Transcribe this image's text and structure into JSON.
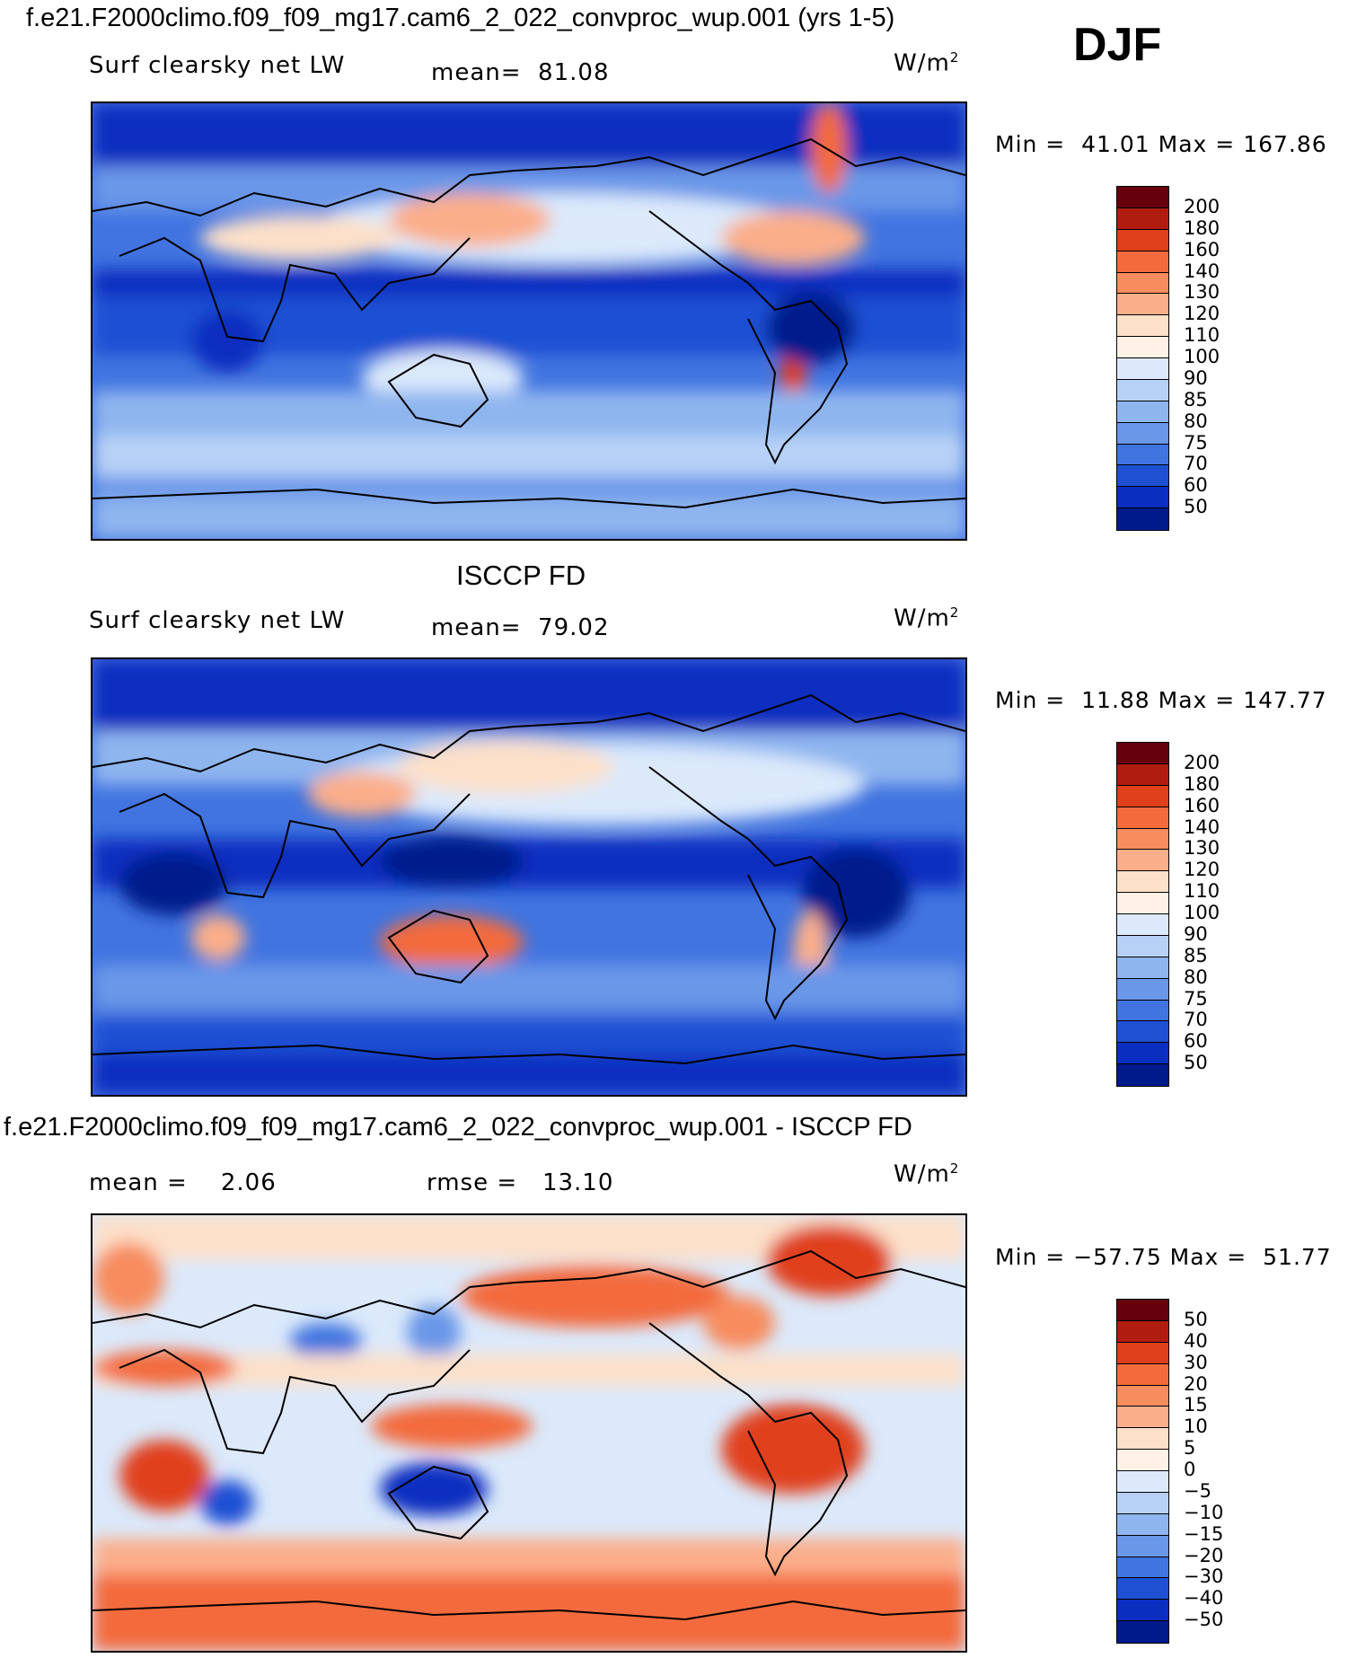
{
  "figure_title": "f.e21.F2000climo.f09_f09_mg17.cam6_2_022_convproc_wup.001 (yrs 1-5)",
  "season": "DJF",
  "panels": [
    {
      "title": "",
      "variable": "Surf clearsky net LW",
      "stat_text": "mean=  81.08",
      "rmse_text": "",
      "units": "W/m",
      "units_exp": "2",
      "minmax": "Min =  41.01 Max = 167.86",
      "colorbar_labels": [
        "200",
        "180",
        "160",
        "140",
        "130",
        "120",
        "110",
        "100",
        "90",
        "85",
        "80",
        "75",
        "70",
        "60",
        "50"
      ],
      "colorbar_colors": [
        "#67000d",
        "#b01c10",
        "#e0401c",
        "#f36a3d",
        "#f78c5e",
        "#fbae8a",
        "#fde0c9",
        "#fff1e6",
        "#dbe9fb",
        "#b7d1f6",
        "#8fb5ef",
        "#6a97e8",
        "#4174e0",
        "#1f4fd3",
        "#0a2fc0",
        "#001a8c"
      ]
    },
    {
      "title": "ISCCP FD",
      "variable": "Surf clearsky net LW",
      "stat_text": "mean=  79.02",
      "rmse_text": "",
      "units": "W/m",
      "units_exp": "2",
      "minmax": "Min =  11.88 Max = 147.77",
      "colorbar_labels": [
        "200",
        "180",
        "160",
        "140",
        "130",
        "120",
        "110",
        "100",
        "90",
        "85",
        "80",
        "75",
        "70",
        "60",
        "50"
      ],
      "colorbar_colors": [
        "#67000d",
        "#b01c10",
        "#e0401c",
        "#f36a3d",
        "#f78c5e",
        "#fbae8a",
        "#fde0c9",
        "#fff1e6",
        "#dbe9fb",
        "#b7d1f6",
        "#8fb5ef",
        "#6a97e8",
        "#4174e0",
        "#1f4fd3",
        "#0a2fc0",
        "#001a8c"
      ]
    },
    {
      "title": "f.e21.F2000climo.f09_f09_mg17.cam6_2_022_convproc_wup.001 - ISCCP FD",
      "variable": "",
      "stat_text": "mean =    2.06",
      "rmse_text": "rmse =   13.10",
      "units": "W/m",
      "units_exp": "2",
      "minmax": "Min = −57.75 Max =  51.77",
      "colorbar_labels": [
        "50",
        "40",
        "30",
        "20",
        "15",
        "10",
        "5",
        "0",
        "−5",
        "−10",
        "−15",
        "−20",
        "−30",
        "−40",
        "−50"
      ],
      "colorbar_colors": [
        "#67000d",
        "#b01c10",
        "#e0401c",
        "#f36a3d",
        "#f78c5e",
        "#fbae8a",
        "#fde0c9",
        "#fff1e6",
        "#dbe9fb",
        "#b7d1f6",
        "#8fb5ef",
        "#6a97e8",
        "#4174e0",
        "#1f4fd3",
        "#0a2fc0",
        "#001a8c"
      ]
    }
  ]
}
